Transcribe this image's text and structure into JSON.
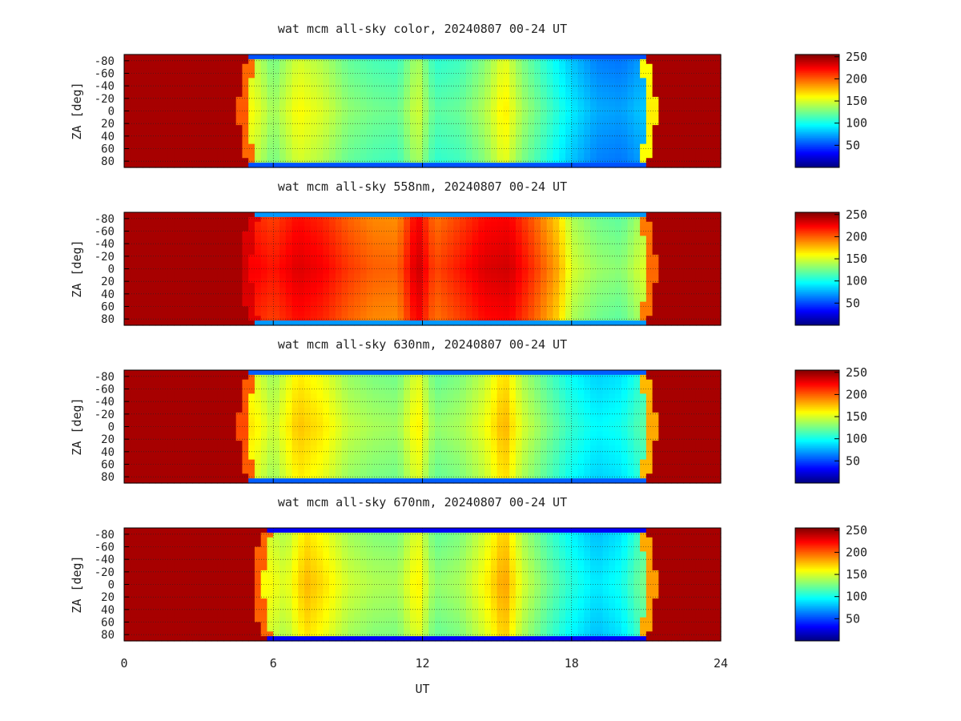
{
  "chart_data": [
    {
      "type": "heatmap",
      "title": "wat mcm all-sky color, 20240807 00-24 UT",
      "ylabel": "ZA [deg]",
      "xlim": [
        0,
        24
      ],
      "ylim": [
        -90,
        90
      ],
      "y_ticks": [
        "-80",
        "-60",
        "-40",
        "-20",
        "0",
        "20",
        "40",
        "60",
        "80"
      ],
      "colorbar": {
        "ticks": [
          "50",
          "100",
          "150",
          "200",
          "250"
        ],
        "range": [
          0,
          255
        ]
      },
      "night_start_ut": 5.2,
      "night_end_ut": 20.8,
      "twilight_value": 105,
      "intensity_profile": [
        {
          "ut": 5.2,
          "value": 158
        },
        {
          "ut": 6.0,
          "value": 135
        },
        {
          "ut": 7.0,
          "value": 160
        },
        {
          "ut": 8.0,
          "value": 150
        },
        {
          "ut": 9.0,
          "value": 132
        },
        {
          "ut": 10.0,
          "value": 125
        },
        {
          "ut": 11.0,
          "value": 122
        },
        {
          "ut": 11.8,
          "value": 150
        },
        {
          "ut": 12.5,
          "value": 118
        },
        {
          "ut": 13.5,
          "value": 122
        },
        {
          "ut": 14.5,
          "value": 140
        },
        {
          "ut": 15.3,
          "value": 165
        },
        {
          "ut": 16.0,
          "value": 138
        },
        {
          "ut": 17.0,
          "value": 115
        },
        {
          "ut": 18.0,
          "value": 92
        },
        {
          "ut": 19.0,
          "value": 75
        },
        {
          "ut": 20.0,
          "value": 72
        },
        {
          "ut": 20.8,
          "value": 82
        }
      ]
    },
    {
      "type": "heatmap",
      "title": "wat mcm all-sky 558nm, 20240807 00-24 UT",
      "ylabel": "ZA [deg]",
      "xlim": [
        0,
        24
      ],
      "ylim": [
        -90,
        90
      ],
      "y_ticks": [
        "-80",
        "-60",
        "-40",
        "-20",
        "0",
        "20",
        "40",
        "60",
        "80"
      ],
      "colorbar": {
        "ticks": [
          "50",
          "100",
          "150",
          "200",
          "250"
        ],
        "range": [
          0,
          255
        ]
      },
      "night_start_ut": 5.3,
      "night_end_ut": 20.8,
      "twilight_value": 140,
      "intensity_profile": [
        {
          "ut": 5.3,
          "value": 225
        },
        {
          "ut": 6.0,
          "value": 218
        },
        {
          "ut": 7.0,
          "value": 232
        },
        {
          "ut": 8.0,
          "value": 225
        },
        {
          "ut": 9.0,
          "value": 210
        },
        {
          "ut": 10.0,
          "value": 200
        },
        {
          "ut": 11.0,
          "value": 198
        },
        {
          "ut": 11.8,
          "value": 238
        },
        {
          "ut": 12.5,
          "value": 205
        },
        {
          "ut": 13.5,
          "value": 218
        },
        {
          "ut": 14.5,
          "value": 232
        },
        {
          "ut": 15.5,
          "value": 235
        },
        {
          "ut": 16.5,
          "value": 210
        },
        {
          "ut": 17.5,
          "value": 180
        },
        {
          "ut": 18.0,
          "value": 150
        },
        {
          "ut": 19.0,
          "value": 135
        },
        {
          "ut": 20.0,
          "value": 130
        },
        {
          "ut": 20.8,
          "value": 150
        }
      ]
    },
    {
      "type": "heatmap",
      "title": "wat mcm all-sky 630nm, 20240807 00-24 UT",
      "ylabel": "ZA [deg]",
      "xlim": [
        0,
        24
      ],
      "ylim": [
        -90,
        90
      ],
      "y_ticks": [
        "-80",
        "-60",
        "-40",
        "-20",
        "0",
        "20",
        "40",
        "60",
        "80"
      ],
      "colorbar": {
        "ticks": [
          "50",
          "100",
          "150",
          "200",
          "250"
        ],
        "range": [
          0,
          255
        ]
      },
      "night_start_ut": 5.2,
      "night_end_ut": 20.8,
      "twilight_value": 110,
      "intensity_profile": [
        {
          "ut": 5.2,
          "value": 165
        },
        {
          "ut": 6.0,
          "value": 145
        },
        {
          "ut": 7.0,
          "value": 175
        },
        {
          "ut": 8.0,
          "value": 165
        },
        {
          "ut": 9.0,
          "value": 145
        },
        {
          "ut": 10.0,
          "value": 138
        },
        {
          "ut": 11.0,
          "value": 135
        },
        {
          "ut": 11.8,
          "value": 165
        },
        {
          "ut": 12.5,
          "value": 132
        },
        {
          "ut": 13.5,
          "value": 138
        },
        {
          "ut": 14.5,
          "value": 155
        },
        {
          "ut": 15.3,
          "value": 180
        },
        {
          "ut": 16.0,
          "value": 150
        },
        {
          "ut": 17.0,
          "value": 128
        },
        {
          "ut": 18.0,
          "value": 108
        },
        {
          "ut": 19.0,
          "value": 95
        },
        {
          "ut": 20.0,
          "value": 100
        },
        {
          "ut": 20.8,
          "value": 118
        }
      ]
    },
    {
      "type": "heatmap",
      "title": "wat mcm all-sky 670nm, 20240807 00-24 UT",
      "ylabel": "ZA [deg]",
      "xlabel": "UT",
      "xlim": [
        0,
        24
      ],
      "x_ticks": [
        "0",
        "6",
        "12",
        "18",
        "24"
      ],
      "ylim": [
        -90,
        90
      ],
      "y_ticks": [
        "-80",
        "-60",
        "-40",
        "-20",
        "0",
        "20",
        "40",
        "60",
        "80"
      ],
      "colorbar": {
        "ticks": [
          "50",
          "100",
          "150",
          "200",
          "250"
        ],
        "range": [
          0,
          255
        ]
      },
      "night_start_ut": 5.8,
      "night_end_ut": 20.8,
      "twilight_value": 60,
      "intensity_profile": [
        {
          "ut": 5.8,
          "value": 160
        },
        {
          "ut": 6.5,
          "value": 150
        },
        {
          "ut": 7.3,
          "value": 178
        },
        {
          "ut": 8.0,
          "value": 168
        },
        {
          "ut": 9.0,
          "value": 148
        },
        {
          "ut": 10.0,
          "value": 140
        },
        {
          "ut": 11.0,
          "value": 138
        },
        {
          "ut": 11.8,
          "value": 165
        },
        {
          "ut": 12.5,
          "value": 132
        },
        {
          "ut": 13.5,
          "value": 138
        },
        {
          "ut": 14.5,
          "value": 160
        },
        {
          "ut": 15.3,
          "value": 185
        },
        {
          "ut": 16.0,
          "value": 150
        },
        {
          "ut": 17.0,
          "value": 125
        },
        {
          "ut": 18.0,
          "value": 105
        },
        {
          "ut": 19.0,
          "value": 90
        },
        {
          "ut": 20.0,
          "value": 100
        },
        {
          "ut": 20.8,
          "value": 125
        }
      ]
    }
  ]
}
